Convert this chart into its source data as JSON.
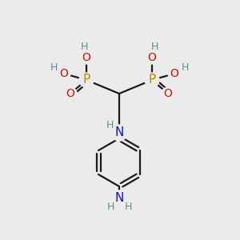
{
  "bg_color": "#ebebeb",
  "atom_colors": {
    "C": "#1a1a1a",
    "H": "#5a9090",
    "O": "#cc1100",
    "N": "#1111dd",
    "P": "#bb8800"
  },
  "bond_color": "#1a1a1a",
  "bond_width": 1.6,
  "figsize": [
    3.0,
    3.0
  ],
  "dpi": 100
}
